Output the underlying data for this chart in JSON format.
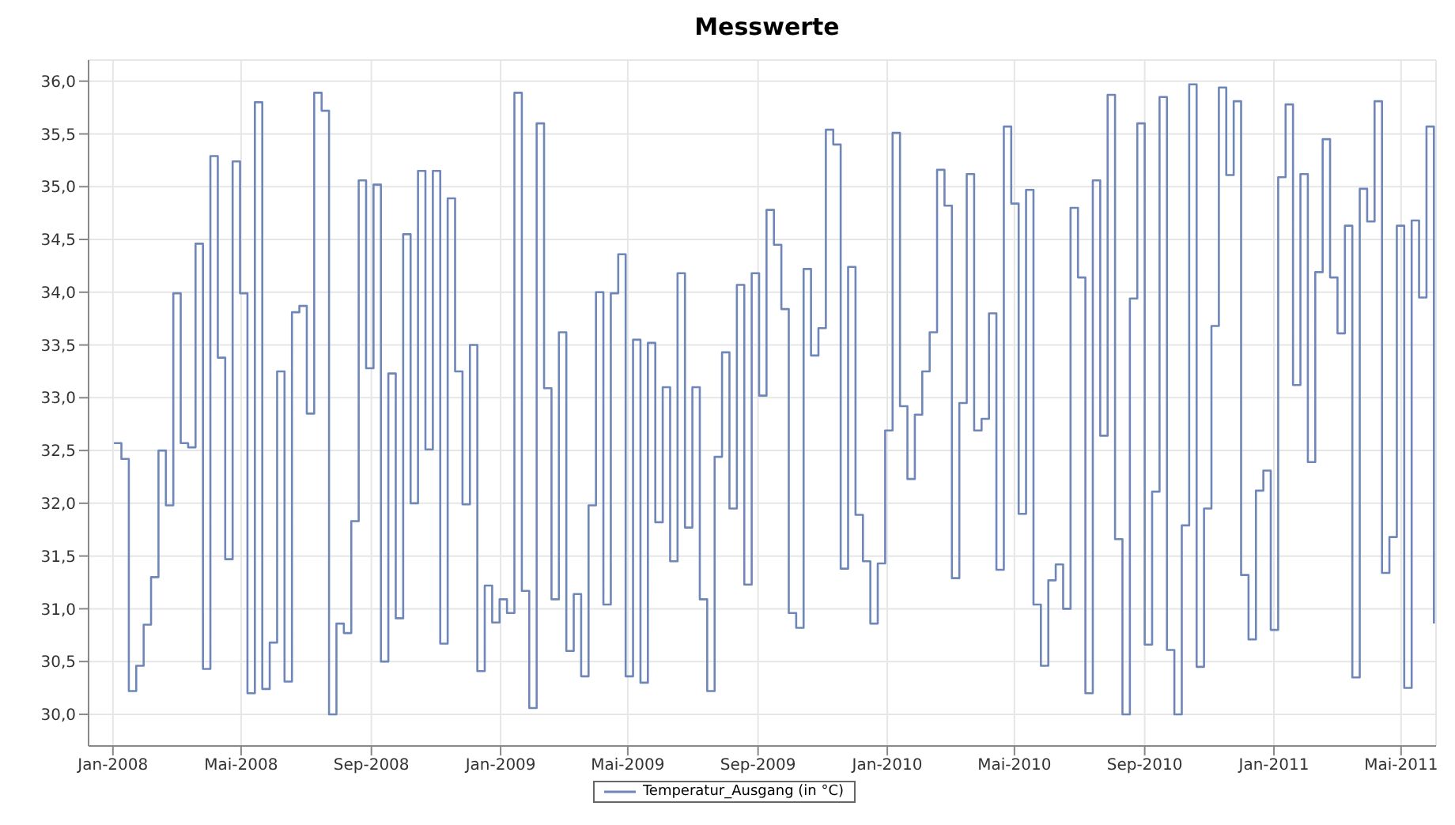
{
  "chart_data": {
    "type": "step",
    "title": "Messwerte",
    "x": [
      "2008-01-02",
      "2008-01-09",
      "2008-01-16",
      "2008-01-23",
      "2008-01-30",
      "2008-02-06",
      "2008-02-13",
      "2008-02-20",
      "2008-02-27",
      "2008-03-05",
      "2008-03-12",
      "2008-03-19",
      "2008-03-26",
      "2008-04-02",
      "2008-04-09",
      "2008-04-16",
      "2008-04-23",
      "2008-04-30",
      "2008-05-07",
      "2008-05-14",
      "2008-05-21",
      "2008-05-28",
      "2008-06-04",
      "2008-06-11",
      "2008-06-18",
      "2008-06-25",
      "2008-07-02",
      "2008-07-09",
      "2008-07-16",
      "2008-07-23",
      "2008-07-30",
      "2008-08-06",
      "2008-08-13",
      "2008-08-20",
      "2008-08-27",
      "2008-09-03",
      "2008-09-10",
      "2008-09-17",
      "2008-09-24",
      "2008-10-01",
      "2008-10-08",
      "2008-10-15",
      "2008-10-22",
      "2008-10-29",
      "2008-11-05",
      "2008-11-12",
      "2008-11-19",
      "2008-11-26",
      "2008-12-03",
      "2008-12-10",
      "2008-12-17",
      "2008-12-24",
      "2008-12-31",
      "2009-01-07",
      "2009-01-14",
      "2009-01-21",
      "2009-01-28",
      "2009-02-04",
      "2009-02-11",
      "2009-02-18",
      "2009-02-25",
      "2009-03-04",
      "2009-03-11",
      "2009-03-18",
      "2009-03-25",
      "2009-04-01",
      "2009-04-08",
      "2009-04-15",
      "2009-04-22",
      "2009-04-29",
      "2009-05-06",
      "2009-05-13",
      "2009-05-20",
      "2009-05-27",
      "2009-06-03",
      "2009-06-10",
      "2009-06-17",
      "2009-06-24",
      "2009-07-01",
      "2009-07-08",
      "2009-07-15",
      "2009-07-22",
      "2009-07-29",
      "2009-08-05",
      "2009-08-12",
      "2009-08-19",
      "2009-08-26",
      "2009-09-02",
      "2009-09-09",
      "2009-09-16",
      "2009-09-23",
      "2009-09-30",
      "2009-10-07",
      "2009-10-14",
      "2009-10-21",
      "2009-10-28",
      "2009-11-04",
      "2009-11-11",
      "2009-11-18",
      "2009-11-25",
      "2009-12-02",
      "2009-12-09",
      "2009-12-16",
      "2009-12-23",
      "2009-12-30",
      "2010-01-06",
      "2010-01-13",
      "2010-01-20",
      "2010-01-27",
      "2010-02-03",
      "2010-02-10",
      "2010-02-17",
      "2010-02-24",
      "2010-03-03",
      "2010-03-10",
      "2010-03-17",
      "2010-03-24",
      "2010-03-31",
      "2010-04-07",
      "2010-04-14",
      "2010-04-21",
      "2010-04-28",
      "2010-05-05",
      "2010-05-12",
      "2010-05-19",
      "2010-05-26",
      "2010-06-02",
      "2010-06-09",
      "2010-06-16",
      "2010-06-23",
      "2010-06-30",
      "2010-07-07",
      "2010-07-14",
      "2010-07-21",
      "2010-07-28",
      "2010-08-04",
      "2010-08-11",
      "2010-08-18",
      "2010-08-25",
      "2010-09-01",
      "2010-09-08",
      "2010-09-15",
      "2010-09-22",
      "2010-09-29",
      "2010-10-06",
      "2010-10-13",
      "2010-10-20",
      "2010-10-27",
      "2010-11-03",
      "2010-11-10",
      "2010-11-17",
      "2010-11-24",
      "2010-12-01",
      "2010-12-08",
      "2010-12-15",
      "2010-12-22",
      "2010-12-29",
      "2011-01-05",
      "2011-01-12",
      "2011-01-19",
      "2011-01-26",
      "2011-02-02",
      "2011-02-09",
      "2011-02-16",
      "2011-02-23",
      "2011-03-02",
      "2011-03-09",
      "2011-03-16",
      "2011-03-23",
      "2011-03-30",
      "2011-04-06",
      "2011-04-13",
      "2011-04-20",
      "2011-04-27",
      "2011-05-04",
      "2011-05-11",
      "2011-05-18",
      "2011-05-25",
      "2011-06-01"
    ],
    "series": [
      {
        "name": "Temperatur_Ausgang (in °C)",
        "color": "#6f86b8",
        "values": [
          32.57,
          32.42,
          30.22,
          30.46,
          30.85,
          31.3,
          32.5,
          31.98,
          33.99,
          32.57,
          32.53,
          34.46,
          30.43,
          35.29,
          33.38,
          31.47,
          35.24,
          33.99,
          30.2,
          35.8,
          30.24,
          30.68,
          33.25,
          30.31,
          33.81,
          33.87,
          32.85,
          35.89,
          35.72,
          30.0,
          30.86,
          30.77,
          31.83,
          35.06,
          33.28,
          35.02,
          30.5,
          33.23,
          30.91,
          34.55,
          32.0,
          35.15,
          32.51,
          35.15,
          30.67,
          34.89,
          33.25,
          31.99,
          33.5,
          30.41,
          31.22,
          30.87,
          31.09,
          30.96,
          35.89,
          31.17,
          30.06,
          35.6,
          33.09,
          31.09,
          33.62,
          30.6,
          31.14,
          30.36,
          31.98,
          34.0,
          31.04,
          33.99,
          34.36,
          30.36,
          33.55,
          30.3,
          33.52,
          31.82,
          33.1,
          31.45,
          34.18,
          31.77,
          33.1,
          31.09,
          30.22,
          32.44,
          33.43,
          31.95,
          34.07,
          31.23,
          34.18,
          33.02,
          34.78,
          34.45,
          33.84,
          30.96,
          30.82,
          34.22,
          33.4,
          33.66,
          35.54,
          35.4,
          31.38,
          34.24,
          31.89,
          31.45,
          30.86,
          31.43,
          32.69,
          35.51,
          32.92,
          32.23,
          32.84,
          33.25,
          33.62,
          35.16,
          34.82,
          31.29,
          32.95,
          35.12,
          32.69,
          32.8,
          33.8,
          31.37,
          35.57,
          34.84,
          31.9,
          34.97,
          31.04,
          30.46,
          31.27,
          31.42,
          31.0,
          34.8,
          34.14,
          30.2,
          35.06,
          32.64,
          35.87,
          31.66,
          30.0,
          33.94,
          35.6,
          30.66,
          32.11,
          35.85,
          30.61,
          30.0,
          31.79,
          35.97,
          30.45,
          31.95,
          33.68,
          35.94,
          35.11,
          35.81,
          31.32,
          30.71,
          32.12,
          32.31,
          30.8,
          35.09,
          35.78,
          33.12,
          35.12,
          32.39,
          34.19,
          35.45,
          34.14,
          33.61,
          34.63,
          30.35,
          34.98,
          34.67,
          35.81,
          31.34,
          31.68,
          34.63,
          30.25,
          34.68,
          33.95,
          35.57,
          30.86
        ]
      }
    ],
    "xlim": [
      "2007-12-09",
      "2011-06-03"
    ],
    "xticks": [
      {
        "value": "2008-01-01",
        "label": "Jan-2008"
      },
      {
        "value": "2008-05-01",
        "label": "Mai-2008"
      },
      {
        "value": "2008-09-01",
        "label": "Sep-2008"
      },
      {
        "value": "2009-01-01",
        "label": "Jan-2009"
      },
      {
        "value": "2009-05-01",
        "label": "Mai-2009"
      },
      {
        "value": "2009-09-01",
        "label": "Sep-2009"
      },
      {
        "value": "2010-01-01",
        "label": "Jan-2010"
      },
      {
        "value": "2010-05-01",
        "label": "Mai-2010"
      },
      {
        "value": "2010-09-01",
        "label": "Sep-2010"
      },
      {
        "value": "2011-01-01",
        "label": "Jan-2011"
      },
      {
        "value": "2011-05-01",
        "label": "Mai-2011"
      }
    ],
    "ylim": [
      29.7,
      36.2
    ],
    "yticks": [
      {
        "value": 30,
        "label": "30,0"
      },
      {
        "value": 30.5,
        "label": "30,5"
      },
      {
        "value": 31,
        "label": "31,0"
      },
      {
        "value": 31.5,
        "label": "31,5"
      },
      {
        "value": 32,
        "label": "32,0"
      },
      {
        "value": 32.5,
        "label": "32,5"
      },
      {
        "value": 33,
        "label": "33,0"
      },
      {
        "value": 33.5,
        "label": "33,5"
      },
      {
        "value": 34,
        "label": "34,0"
      },
      {
        "value": 34.5,
        "label": "34,5"
      },
      {
        "value": 35,
        "label": "35,0"
      },
      {
        "value": 35.5,
        "label": "35,5"
      },
      {
        "value": 36,
        "label": "36,0"
      }
    ],
    "grid": true,
    "legend": "bottom"
  }
}
